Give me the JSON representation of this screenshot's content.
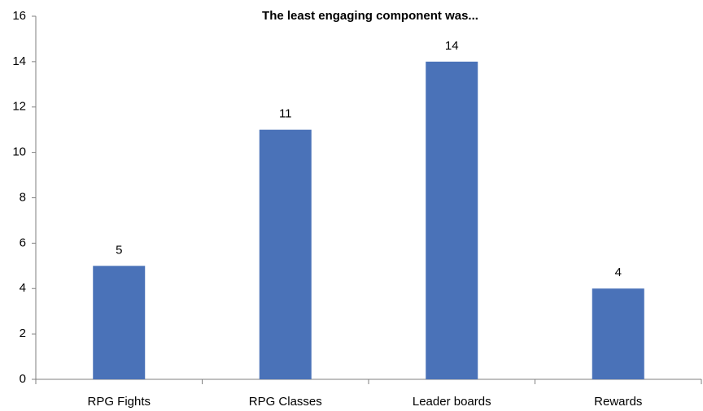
{
  "chart_data": {
    "type": "bar",
    "title": "The least engaging component was...",
    "categories": [
      "RPG Fights",
      "RPG Classes",
      "Leader boards",
      "Rewards"
    ],
    "values": [
      5,
      11,
      14,
      4
    ],
    "color": "#4a72b8",
    "ylim": [
      0,
      16
    ],
    "yticks": [
      0,
      2,
      4,
      6,
      8,
      10,
      12,
      14,
      16
    ],
    "grid": false
  }
}
